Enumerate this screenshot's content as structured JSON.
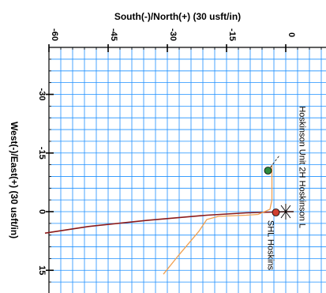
{
  "chart_data": {
    "type": "line",
    "title": "",
    "xlabel": "South(-)/North(+) (30 usft/in)",
    "ylabel": "West(-)/East(+) (30 usft/in)",
    "x_ticks": [
      {
        "value": -60,
        "label": "-60"
      },
      {
        "value": -45,
        "label": "-45"
      },
      {
        "value": -30,
        "label": "-30"
      },
      {
        "value": -15,
        "label": "-15"
      },
      {
        "value": 0,
        "label": "0"
      }
    ],
    "y_ticks": [
      {
        "value": -30,
        "label": "-30"
      },
      {
        "value": -15,
        "label": "-15"
      },
      {
        "value": 0,
        "label": "0"
      },
      {
        "value": 15,
        "label": "15"
      }
    ],
    "xlim": [
      -61,
      10
    ],
    "ylim": [
      -45,
      20
    ],
    "grid": true,
    "annotations": [
      {
        "text": "Hoskinson Unit 2H Hoskinson L",
        "x": 3.5,
        "y": -27
      },
      {
        "text": "SHL Hoskins",
        "x": -4.5,
        "y": 2.2
      }
    ],
    "series": [
      {
        "color": "#8b1a1a",
        "points": [
          [
            -61,
            5.5
          ],
          [
            -50,
            3.8
          ],
          [
            -35,
            2.2
          ],
          [
            -20,
            0.9
          ],
          [
            -10,
            0.3
          ],
          [
            -3,
            0.1
          ],
          [
            0,
            0
          ],
          [
            2,
            0
          ]
        ]
      },
      {
        "color": "#f0a050",
        "points": [
          [
            -31,
            16
          ],
          [
            -27,
            11
          ],
          [
            -22,
            5
          ],
          [
            -20,
            2
          ],
          [
            -17,
            1.2
          ],
          [
            -10,
            0.9
          ],
          [
            -7,
            0.7
          ],
          [
            -4,
            -0.6
          ],
          [
            -3.5,
            -3
          ],
          [
            -3.5,
            -9
          ],
          [
            -3.5,
            -12
          ]
        ]
      }
    ],
    "points": [
      {
        "name": "green-marker",
        "x": -4.5,
        "y": -10.5,
        "color": "#2e8b3e"
      },
      {
        "name": "red-marker",
        "x": -2.5,
        "y": 0.2,
        "color": "#d04030"
      }
    ],
    "dashed_leader": [
      [
        -4.5,
        -10.5
      ],
      [
        -1.5,
        -14.5
      ]
    ]
  }
}
